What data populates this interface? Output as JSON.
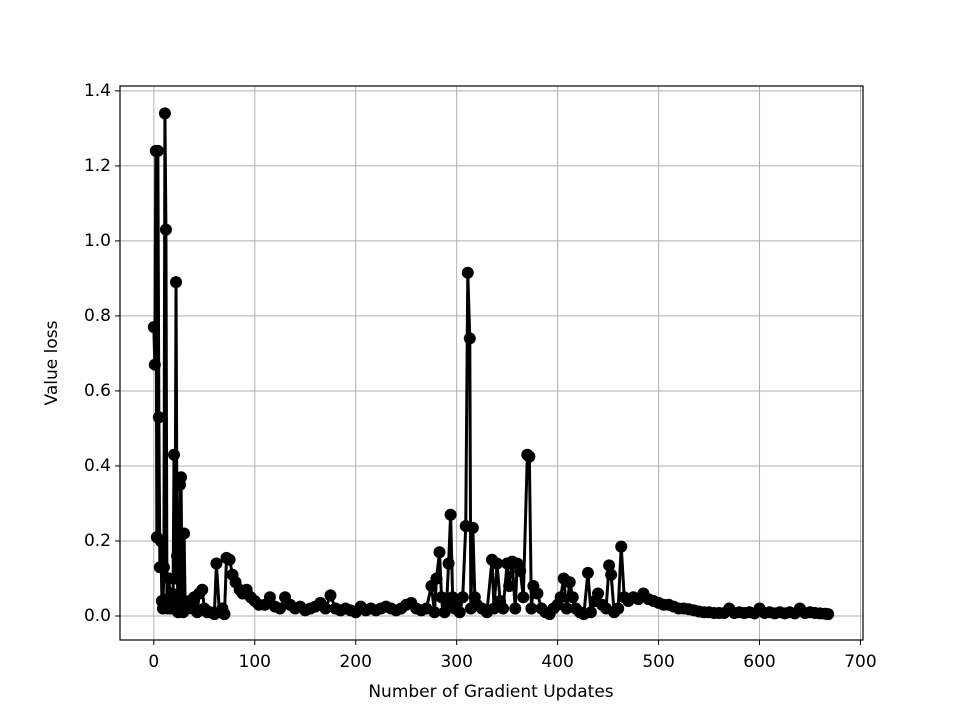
{
  "chart_data": {
    "type": "line",
    "color": "#000000",
    "grid": true,
    "x_label": "Number of Gradient Updates",
    "y_label": "Value loss",
    "xlim": [
      -33.5,
      702.5
    ],
    "ylim": [
      -0.064,
      1.413
    ],
    "xticks": [
      0,
      100,
      200,
      300,
      400,
      500,
      600,
      700
    ],
    "yticks": [
      {
        "value": 0,
        "label": "0.0"
      },
      0.2,
      0.4,
      0.6,
      0.8,
      {
        "value": 1,
        "label": "1.0"
      },
      1.2,
      1.4
    ],
    "x": [
      0,
      1,
      2,
      3,
      4,
      5,
      6,
      7,
      8,
      9,
      10,
      11,
      12,
      13,
      14,
      15,
      16,
      17,
      18,
      19,
      20,
      21,
      22,
      23,
      24,
      25,
      26,
      27,
      28,
      29,
      30,
      31,
      33,
      35,
      38,
      40,
      43,
      45,
      48,
      50,
      53,
      56,
      60,
      62,
      65,
      68,
      70,
      72,
      75,
      78,
      81,
      85,
      88,
      92,
      96,
      100,
      104,
      110,
      115,
      120,
      125,
      130,
      135,
      140,
      145,
      150,
      155,
      160,
      165,
      170,
      175,
      180,
      185,
      190,
      195,
      200,
      205,
      210,
      215,
      220,
      225,
      230,
      235,
      240,
      245,
      250,
      255,
      260,
      265,
      270,
      275,
      278,
      280,
      283,
      285,
      288,
      290,
      292,
      294,
      296,
      298,
      300,
      303,
      306,
      309,
      311,
      313,
      314,
      316,
      318,
      320,
      325,
      330,
      335,
      337,
      340,
      343,
      346,
      350,
      352,
      355,
      358,
      360,
      363,
      366,
      370,
      372,
      374,
      376,
      380,
      384,
      388,
      392,
      396,
      400,
      403,
      406,
      409,
      412,
      415,
      418,
      422,
      426,
      430,
      433,
      437,
      440,
      444,
      448,
      451,
      453,
      456,
      460,
      463,
      466,
      470,
      475,
      480,
      485,
      490,
      495,
      500,
      505,
      510,
      515,
      520,
      525,
      530,
      535,
      540,
      545,
      550,
      555,
      560,
      565,
      570,
      575,
      580,
      585,
      590,
      595,
      600,
      605,
      610,
      615,
      620,
      625,
      630,
      635,
      640,
      645,
      650,
      655,
      660,
      665,
      668
    ],
    "values": [
      0.77,
      0.67,
      1.24,
      0.21,
      1.24,
      0.53,
      0.13,
      0.2,
      0.04,
      0.02,
      0.13,
      1.34,
      1.03,
      0.03,
      0.02,
      0.1,
      0.05,
      0.02,
      0.06,
      0.03,
      0.43,
      0.1,
      0.89,
      0.16,
      0.01,
      0.05,
      0.35,
      0.37,
      0.02,
      0.01,
      0.22,
      0.03,
      0.02,
      0.04,
      0.02,
      0.05,
      0.01,
      0.06,
      0.07,
      0.02,
      0.01,
      0.01,
      0.005,
      0.14,
      0.01,
      0.02,
      0.005,
      0.155,
      0.15,
      0.11,
      0.09,
      0.07,
      0.06,
      0.07,
      0.05,
      0.04,
      0.03,
      0.03,
      0.05,
      0.025,
      0.02,
      0.05,
      0.03,
      0.02,
      0.025,
      0.015,
      0.02,
      0.025,
      0.035,
      0.02,
      0.055,
      0.02,
      0.015,
      0.02,
      0.015,
      0.01,
      0.025,
      0.015,
      0.02,
      0.015,
      0.02,
      0.025,
      0.02,
      0.015,
      0.02,
      0.03,
      0.035,
      0.02,
      0.015,
      0.02,
      0.08,
      0.01,
      0.1,
      0.17,
      0.05,
      0.01,
      0.03,
      0.14,
      0.27,
      0.05,
      0.02,
      0.03,
      0.01,
      0.05,
      0.24,
      0.915,
      0.74,
      0.02,
      0.235,
      0.05,
      0.03,
      0.02,
      0.01,
      0.15,
      0.02,
      0.14,
      0.04,
      0.02,
      0.14,
      0.08,
      0.145,
      0.02,
      0.14,
      0.12,
      0.05,
      0.43,
      0.425,
      0.02,
      0.08,
      0.06,
      0.02,
      0.01,
      0.005,
      0.02,
      0.03,
      0.05,
      0.1,
      0.02,
      0.09,
      0.05,
      0.02,
      0.01,
      0.005,
      0.115,
      0.01,
      0.04,
      0.06,
      0.03,
      0.02,
      0.135,
      0.11,
      0.01,
      0.02,
      0.185,
      0.05,
      0.04,
      0.05,
      0.045,
      0.06,
      0.045,
      0.04,
      0.035,
      0.03,
      0.03,
      0.025,
      0.02,
      0.02,
      0.018,
      0.015,
      0.012,
      0.01,
      0.01,
      0.008,
      0.008,
      0.008,
      0.02,
      0.008,
      0.01,
      0.008,
      0.01,
      0.007,
      0.02,
      0.008,
      0.01,
      0.007,
      0.01,
      0.007,
      0.01,
      0.007,
      0.02,
      0.008,
      0.01,
      0.008,
      0.007,
      0.006,
      0.005
    ]
  }
}
